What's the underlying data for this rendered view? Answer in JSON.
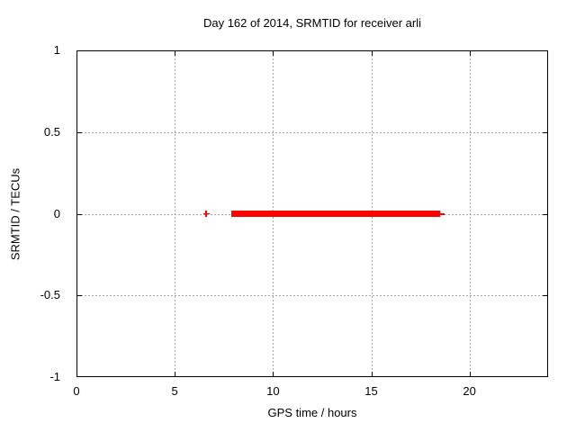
{
  "chart_data": {
    "type": "scatter",
    "title": "Day 162 of 2014, SRMTID for receiver arli",
    "xlabel": "GPS time / hours",
    "ylabel": "SRMTID / TECUs",
    "xlim": [
      0,
      24
    ],
    "ylim": [
      -1,
      1
    ],
    "xticks": [
      0,
      5,
      10,
      15,
      20
    ],
    "xtick_labels": [
      "0",
      "5",
      "10",
      "15",
      "20"
    ],
    "yticks": [
      1,
      0.5,
      0,
      -0.5,
      -1
    ],
    "ytick_labels": [
      "1",
      "0.5",
      "0",
      "-0.5",
      "-1"
    ],
    "grid": true,
    "legend_position": "none",
    "marker_style": "plus",
    "series": [
      {
        "name": "SRMTID",
        "color": "#ff0000",
        "isolated_points": [
          {
            "x": 6.6,
            "y": 0
          }
        ],
        "dense_runs": [
          {
            "x_start": 7.9,
            "x_end": 18.5,
            "y": 0
          }
        ],
        "thin_segments": [
          {
            "x_start": 18.5,
            "x_end": 18.75,
            "y": 0
          }
        ]
      }
    ],
    "colors": {
      "grid": "#a6a6a6",
      "axis": "#000000",
      "background": "#ffffff",
      "text": "#000000"
    }
  }
}
